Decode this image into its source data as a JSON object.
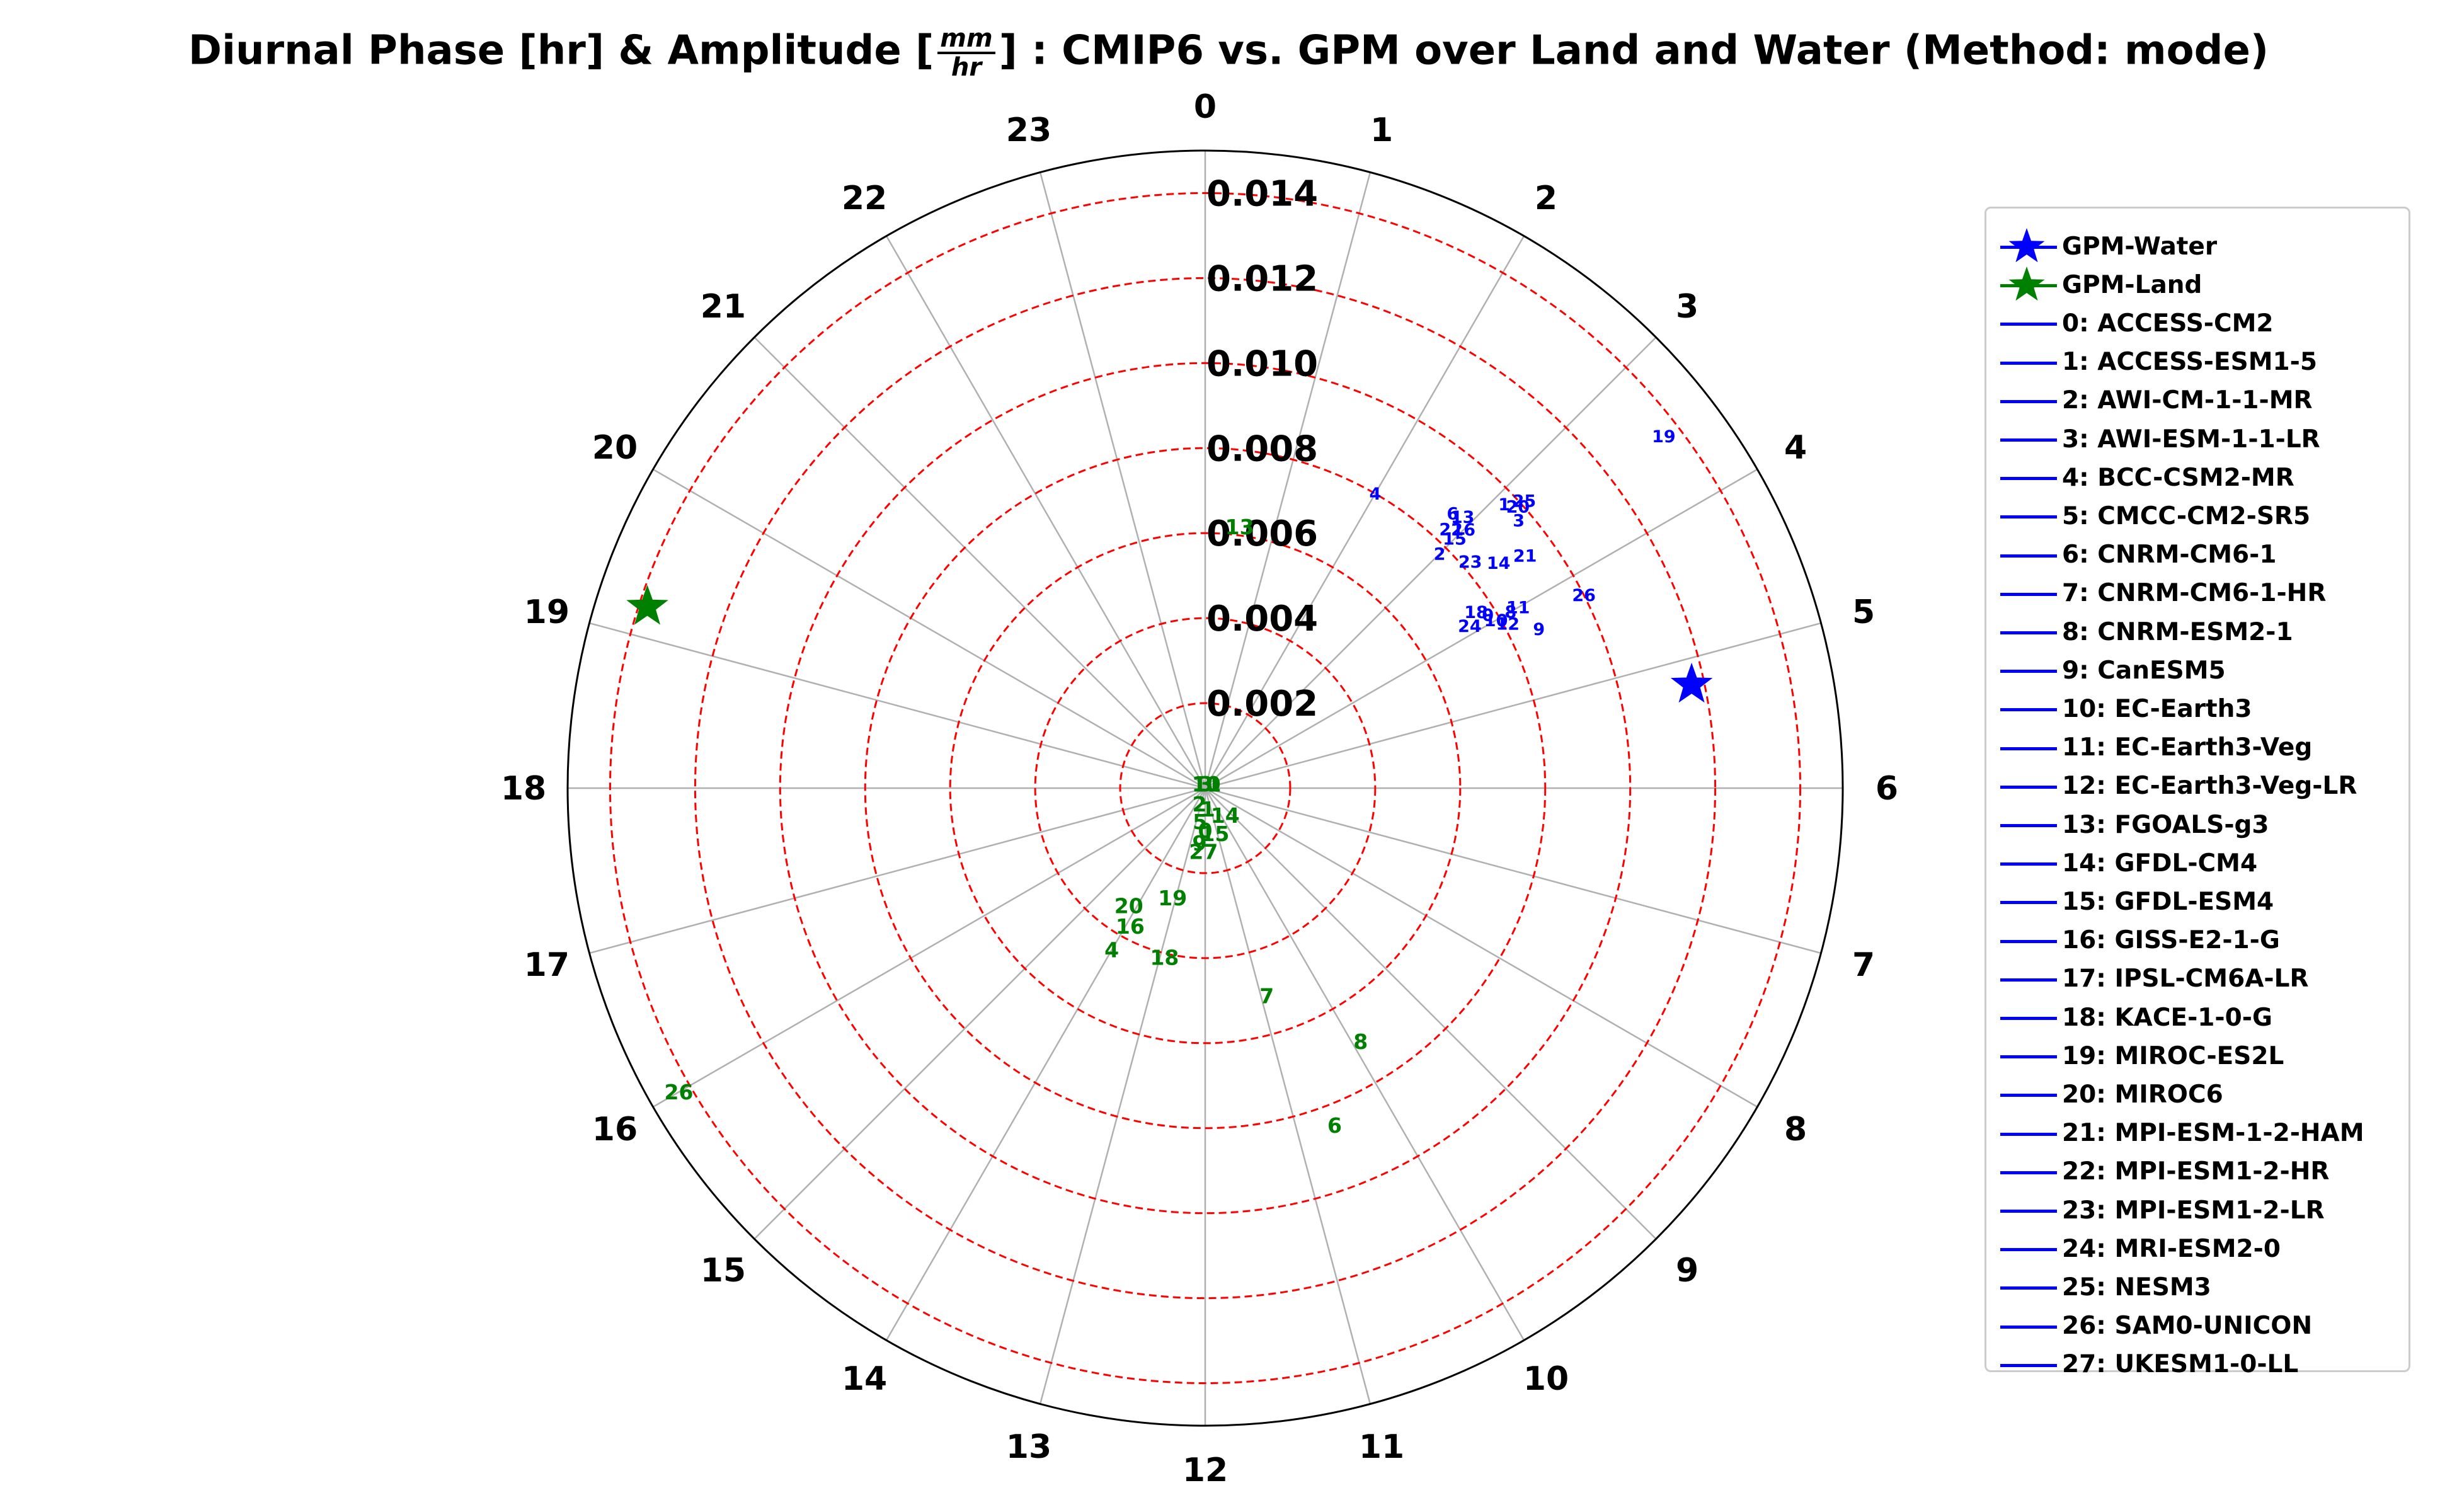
{
  "chart_data": {
    "type": "scatter",
    "projection": "polar",
    "title_parts": {
      "prefix": "Diurnal Phase [hr] & Amplitude [",
      "unit_num": "mm",
      "unit_den": "hr",
      "suffix": "] : CMIP6 vs. GPM over Land and Water (Method: mode)"
    },
    "theta_ticks": [
      "0",
      "1",
      "2",
      "3",
      "4",
      "5",
      "6",
      "7",
      "8",
      "9",
      "10",
      "11",
      "12",
      "13",
      "14",
      "15",
      "16",
      "17",
      "18",
      "19",
      "20",
      "21",
      "22",
      "23"
    ],
    "r_ticks": [
      "0.002",
      "0.004",
      "0.006",
      "0.008",
      "0.010",
      "0.012",
      "0.014"
    ],
    "r_tick_values": [
      0.002,
      0.004,
      0.006,
      0.008,
      0.01,
      0.012,
      0.014
    ],
    "rlim": [
      0,
      0.015
    ],
    "grid": true,
    "colors": {
      "water": "#0000ff",
      "land": "#008000",
      "rings": "#ff0000",
      "spokes": "#b0b0b0"
    },
    "reference": [
      {
        "name": "GPM-Water",
        "phase_hr": 5.2,
        "amplitude": 0.0117,
        "color": "#0000ff"
      },
      {
        "name": "GPM-Land",
        "phase_hr": 19.2,
        "amplitude": 0.0138,
        "color": "#008000"
      }
    ],
    "series": [
      {
        "name": "water",
        "color": "#0000ff",
        "points": [
          {
            "id": "19",
            "phase_hr": 3.5,
            "amplitude": 0.0136
          },
          {
            "id": "4",
            "phase_hr": 2.0,
            "amplitude": 0.008
          },
          {
            "id": "25",
            "phase_hr": 3.2,
            "amplitude": 0.0101
          },
          {
            "id": "1",
            "phase_hr": 3.1,
            "amplitude": 0.0097
          },
          {
            "id": "20",
            "phase_hr": 3.2,
            "amplitude": 0.0099
          },
          {
            "id": "3",
            "phase_hr": 3.3,
            "amplitude": 0.0097
          },
          {
            "id": "6",
            "phase_hr": 2.8,
            "amplitude": 0.0087
          },
          {
            "id": "13",
            "phase_hr": 2.9,
            "amplitude": 0.0088
          },
          {
            "id": "22",
            "phase_hr": 2.9,
            "amplitude": 0.0084
          },
          {
            "id": "16",
            "phase_hr": 3.0,
            "amplitude": 0.0086
          },
          {
            "id": "15",
            "phase_hr": 3.0,
            "amplitude": 0.0083
          },
          {
            "id": "2",
            "phase_hr": 3.0,
            "amplitude": 0.0078
          },
          {
            "id": "23",
            "phase_hr": 3.3,
            "amplitude": 0.0082
          },
          {
            "id": "14",
            "phase_hr": 3.5,
            "amplitude": 0.0087
          },
          {
            "id": "21",
            "phase_hr": 3.6,
            "amplitude": 0.0093
          },
          {
            "id": "18",
            "phase_hr": 3.8,
            "amplitude": 0.0076
          },
          {
            "id": "0",
            "phase_hr": 3.9,
            "amplitude": 0.0078
          },
          {
            "id": "8",
            "phase_hr": 4.0,
            "amplitude": 0.0083
          },
          {
            "id": "11",
            "phase_hr": 4.0,
            "amplitude": 0.0085
          },
          {
            "id": "24",
            "phase_hr": 3.9,
            "amplitude": 0.0073
          },
          {
            "id": "10",
            "phase_hr": 4.0,
            "amplitude": 0.0079
          },
          {
            "id": "12",
            "phase_hr": 4.1,
            "amplitude": 0.0081
          },
          {
            "id": "26",
            "phase_hr": 4.2,
            "amplitude": 0.01
          },
          {
            "id": "9",
            "phase_hr": 4.3,
            "amplitude": 0.0087
          }
        ]
      },
      {
        "name": "land",
        "color": "#008000",
        "points": [
          {
            "id": "13",
            "phase_hr": 0.5,
            "amplitude": 0.0062
          },
          {
            "id": "26",
            "phase_hr": 16.0,
            "amplitude": 0.0143
          },
          {
            "id": "20",
            "phase_hr": 14.2,
            "amplitude": 0.0033
          },
          {
            "id": "16",
            "phase_hr": 13.9,
            "amplitude": 0.0037
          },
          {
            "id": "19",
            "phase_hr": 13.1,
            "amplitude": 0.0027
          },
          {
            "id": "4",
            "phase_hr": 14.0,
            "amplitude": 0.0044
          },
          {
            "id": "18",
            "phase_hr": 12.9,
            "amplitude": 0.0041
          },
          {
            "id": "7",
            "phase_hr": 10.9,
            "amplitude": 0.0051
          },
          {
            "id": "8",
            "phase_hr": 9.9,
            "amplitude": 0.007
          },
          {
            "id": "6",
            "phase_hr": 10.6,
            "amplitude": 0.0085
          },
          {
            "id": "27",
            "phase_hr": 12.1,
            "amplitude": 0.0015
          },
          {
            "id": "9",
            "phase_hr": 12.4,
            "amplitude": 0.0013
          },
          {
            "id": "15",
            "phase_hr": 11.2,
            "amplitude": 0.0011
          },
          {
            "id": "14",
            "phase_hr": 9.6,
            "amplitude": 0.0008
          },
          {
            "id": "0",
            "phase_hr": 12.0,
            "amplitude": 0.001
          },
          {
            "id": "5",
            "phase_hr": 12.6,
            "amplitude": 0.0008
          },
          {
            "id": "2",
            "phase_hr": 13.3,
            "amplitude": 0.0004
          },
          {
            "id": "1",
            "phase_hr": 11.5,
            "amplitude": 0.0005
          },
          {
            "id": "3",
            "phase_hr": 0.5,
            "amplitude": 0.0001
          },
          {
            "id": "10",
            "phase_hr": 1.0,
            "amplitude": 0.0001
          },
          {
            "id": "11",
            "phase_hr": 1.5,
            "amplitude": 0.0001
          }
        ]
      }
    ]
  },
  "legend": {
    "entries": [
      {
        "label": "GPM-Water",
        "kind": "star",
        "color": "#0000ff"
      },
      {
        "label": "GPM-Land",
        "kind": "star",
        "color": "#008000"
      },
      {
        "label": "0: ACCESS-CM2",
        "kind": "line",
        "color": "#0000ff"
      },
      {
        "label": "1: ACCESS-ESM1-5",
        "kind": "line",
        "color": "#0000ff"
      },
      {
        "label": "2: AWI-CM-1-1-MR",
        "kind": "line",
        "color": "#0000ff"
      },
      {
        "label": "3: AWI-ESM-1-1-LR",
        "kind": "line",
        "color": "#0000ff"
      },
      {
        "label": "4: BCC-CSM2-MR",
        "kind": "line",
        "color": "#0000ff"
      },
      {
        "label": "5: CMCC-CM2-SR5",
        "kind": "line",
        "color": "#0000ff"
      },
      {
        "label": "6: CNRM-CM6-1",
        "kind": "line",
        "color": "#0000ff"
      },
      {
        "label": "7: CNRM-CM6-1-HR",
        "kind": "line",
        "color": "#0000ff"
      },
      {
        "label": "8: CNRM-ESM2-1",
        "kind": "line",
        "color": "#0000ff"
      },
      {
        "label": "9: CanESM5",
        "kind": "line",
        "color": "#0000ff"
      },
      {
        "label": "10: EC-Earth3",
        "kind": "line",
        "color": "#0000ff"
      },
      {
        "label": "11: EC-Earth3-Veg",
        "kind": "line",
        "color": "#0000ff"
      },
      {
        "label": "12: EC-Earth3-Veg-LR",
        "kind": "line",
        "color": "#0000ff"
      },
      {
        "label": "13: FGOALS-g3",
        "kind": "line",
        "color": "#0000ff"
      },
      {
        "label": "14: GFDL-CM4",
        "kind": "line",
        "color": "#0000ff"
      },
      {
        "label": "15: GFDL-ESM4",
        "kind": "line",
        "color": "#0000ff"
      },
      {
        "label": "16: GISS-E2-1-G",
        "kind": "line",
        "color": "#0000ff"
      },
      {
        "label": "17: IPSL-CM6A-LR",
        "kind": "line",
        "color": "#0000ff"
      },
      {
        "label": "18: KACE-1-0-G",
        "kind": "line",
        "color": "#0000ff"
      },
      {
        "label": "19: MIROC-ES2L",
        "kind": "line",
        "color": "#0000ff"
      },
      {
        "label": "20: MIROC6",
        "kind": "line",
        "color": "#0000ff"
      },
      {
        "label": "21: MPI-ESM-1-2-HAM",
        "kind": "line",
        "color": "#0000ff"
      },
      {
        "label": "22: MPI-ESM1-2-HR",
        "kind": "line",
        "color": "#0000ff"
      },
      {
        "label": "23: MPI-ESM1-2-LR",
        "kind": "line",
        "color": "#0000ff"
      },
      {
        "label": "24: MRI-ESM2-0",
        "kind": "line",
        "color": "#0000ff"
      },
      {
        "label": "25: NESM3",
        "kind": "line",
        "color": "#0000ff"
      },
      {
        "label": "26: SAM0-UNICON",
        "kind": "line",
        "color": "#0000ff"
      },
      {
        "label": "27: UKESM1-0-LL",
        "kind": "line",
        "color": "#0000ff"
      }
    ]
  }
}
